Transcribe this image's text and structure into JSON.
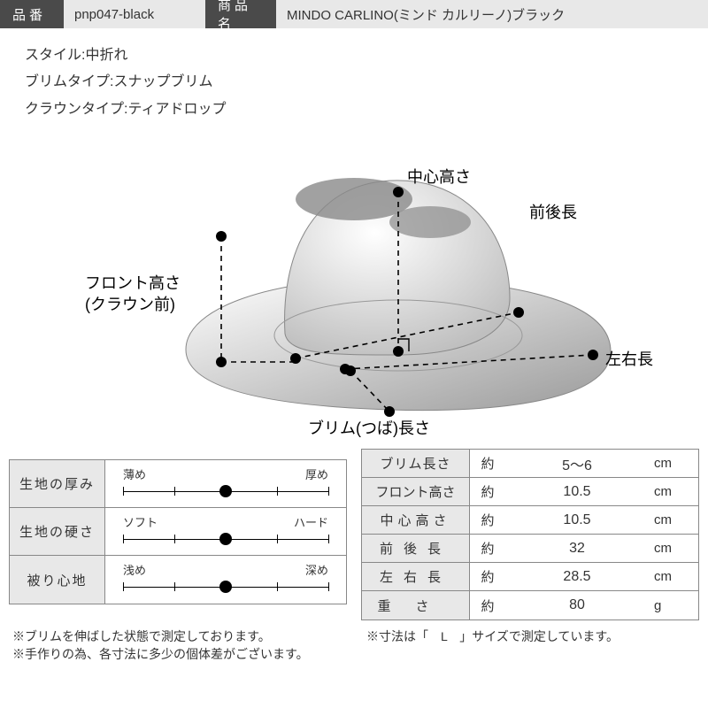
{
  "header": {
    "code_label": "品番",
    "code_value": "pnp047-black",
    "name_label": "商品名",
    "name_value": "MINDO CARLINO(ミンド カルリーノ)ブラック"
  },
  "specs": {
    "style": "スタイル:中折れ",
    "brim": "ブリムタイプ:スナップブリム",
    "crown": "クラウンタイプ:ティアドロップ"
  },
  "diagram_labels": {
    "center_height": "中心高さ",
    "front_back": "前後長",
    "front_height_1": "フロント高さ",
    "front_height_2": "(クラウン前)",
    "left_right": "左右長",
    "brim_len": "ブリム(つば)長さ"
  },
  "sliders": [
    {
      "name": "生地の厚み",
      "low": "薄め",
      "high": "厚め",
      "value_pct": 50
    },
    {
      "name": "生地の硬さ",
      "low": "ソフト",
      "high": "ハード",
      "value_pct": 50
    },
    {
      "name": "被り心地",
      "low": "浅め",
      "high": "深め",
      "value_pct": 50
    }
  ],
  "measurements": [
    {
      "name": "ブリム長さ",
      "approx": "約",
      "value": "5～6",
      "unit": "cm",
      "ls": "1px"
    },
    {
      "name": "フロント高さ",
      "approx": "約",
      "value": "10.5",
      "unit": "cm",
      "ls": "0px"
    },
    {
      "name": "中心高さ",
      "approx": "約",
      "value": "10.5",
      "unit": "cm",
      "ls": "5px"
    },
    {
      "name": "前後長",
      "approx": "約",
      "value": "32",
      "unit": "cm",
      "ls": "12px"
    },
    {
      "name": "左右長",
      "approx": "約",
      "value": "28.5",
      "unit": "cm",
      "ls": "12px"
    },
    {
      "name": "重さ",
      "approx": "約",
      "value": "80",
      "unit": "g",
      "ls": "28px"
    }
  ],
  "notes": {
    "left1": "※ブリムを伸ばした状態で測定しております。",
    "left2": "※手作りの為、各寸法に多少の個体差がございます。",
    "right": "※寸法は「　L　」サイズで測定しています。"
  },
  "colors": {
    "header_dark": "#4a4a4a",
    "header_light": "#e8e8e8",
    "border": "#888888",
    "text": "#333333"
  }
}
